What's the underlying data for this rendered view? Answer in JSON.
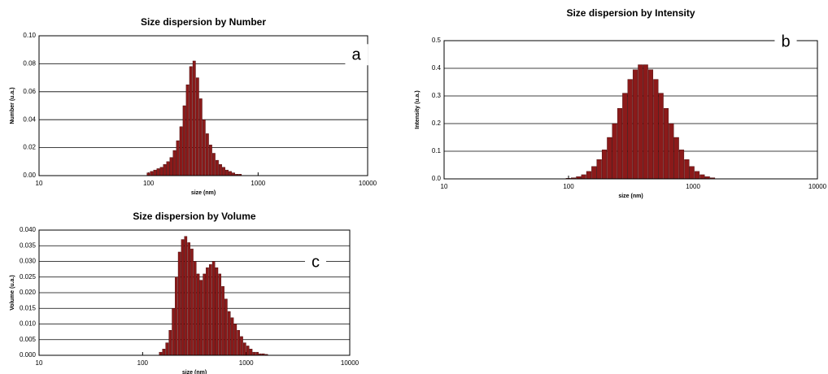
{
  "chart_data": [
    {
      "type": "bar",
      "title": "Size dispersion by Number",
      "annotation": "a",
      "x_label": "size (nm)",
      "y_label": "Number (u.a.)",
      "log_x": true,
      "grid": true,
      "color": "#8b1a1a",
      "xlim": [
        10,
        10000
      ],
      "xticks": [
        10,
        100,
        1000,
        10000
      ],
      "ylim": [
        0,
        0.1
      ],
      "yticks": [
        {
          "value": 0,
          "label": "0.00"
        },
        0.02,
        0.04,
        0.06,
        0.08,
        {
          "value": 0.1,
          "label": "0.10"
        }
      ],
      "x": [
        100,
        107,
        115,
        123,
        132,
        141,
        151,
        162,
        173,
        186,
        199,
        213,
        228,
        245,
        262,
        281,
        301,
        322,
        345,
        370,
        396,
        424,
        455,
        487,
        522,
        559,
        599,
        642,
        688
      ],
      "values": [
        0.002,
        0.003,
        0.004,
        0.005,
        0.006,
        0.008,
        0.01,
        0.013,
        0.018,
        0.025,
        0.035,
        0.05,
        0.065,
        0.078,
        0.082,
        0.07,
        0.055,
        0.04,
        0.03,
        0.022,
        0.016,
        0.011,
        0.008,
        0.006,
        0.004,
        0.003,
        0.002,
        0.001,
        0.001
      ]
    },
    {
      "type": "bar",
      "title": "Size dispersion by Intensity",
      "annotation": "b",
      "x_label": "size (nm)",
      "y_label": "Intensity (u.a.)",
      "log_x": true,
      "grid": true,
      "color": "#8b1a1a",
      "xlim": [
        10,
        10000
      ],
      "xticks": [
        10,
        100,
        1000,
        10000
      ],
      "ylim": [
        0,
        0.5
      ],
      "yticks": [
        {
          "value": 0,
          "label": "0.0"
        },
        0.1,
        0.2,
        0.3,
        0.4,
        0.5
      ],
      "x": [
        100,
        110,
        121,
        133,
        146,
        161,
        177,
        195,
        214,
        236,
        259,
        285,
        314,
        345,
        380,
        418,
        459,
        505,
        556,
        611,
        672,
        740,
        814,
        895,
        985,
        1083,
        1192,
        1311,
        1442
      ],
      "values": [
        0.002,
        0.004,
        0.008,
        0.015,
        0.027,
        0.045,
        0.07,
        0.105,
        0.15,
        0.2,
        0.255,
        0.31,
        0.36,
        0.395,
        0.413,
        0.413,
        0.395,
        0.36,
        0.31,
        0.255,
        0.2,
        0.15,
        0.105,
        0.07,
        0.045,
        0.027,
        0.015,
        0.008,
        0.004
      ]
    },
    {
      "type": "bar",
      "title": "Size dispersion by Volume",
      "annotation": "c",
      "x_label": "size (nm)",
      "y_label": "Volume (u.a.)",
      "log_x": true,
      "grid": true,
      "color": "#8b1a1a",
      "xlim": [
        10,
        10000
      ],
      "xticks": [
        10,
        100,
        1000,
        10000
      ],
      "ylim": [
        0,
        0.04
      ],
      "yticks": [
        {
          "value": 0,
          "label": "0.000"
        },
        0.005,
        {
          "value": 0.01,
          "label": "0.010"
        },
        0.015,
        {
          "value": 0.02,
          "label": "0.020"
        },
        0.025,
        {
          "value": 0.03,
          "label": "0.030"
        },
        0.035,
        {
          "value": 0.04,
          "label": "0.040"
        }
      ],
      "x": [
        150,
        161,
        173,
        186,
        199,
        213,
        228,
        245,
        262,
        281,
        301,
        322,
        345,
        370,
        396,
        424,
        455,
        487,
        522,
        559,
        599,
        642,
        688,
        737,
        790,
        847,
        907,
        972,
        1042,
        1117,
        1197,
        1283,
        1375,
        1473,
        1579
      ],
      "values": [
        0.001,
        0.002,
        0.004,
        0.008,
        0.015,
        0.025,
        0.033,
        0.037,
        0.038,
        0.036,
        0.034,
        0.03,
        0.026,
        0.024,
        0.026,
        0.028,
        0.029,
        0.03,
        0.028,
        0.026,
        0.022,
        0.018,
        0.014,
        0.012,
        0.01,
        0.008,
        0.006,
        0.004,
        0.003,
        0.002,
        0.001,
        0.001,
        0.0005,
        0.0005,
        0.0003
      ]
    }
  ]
}
